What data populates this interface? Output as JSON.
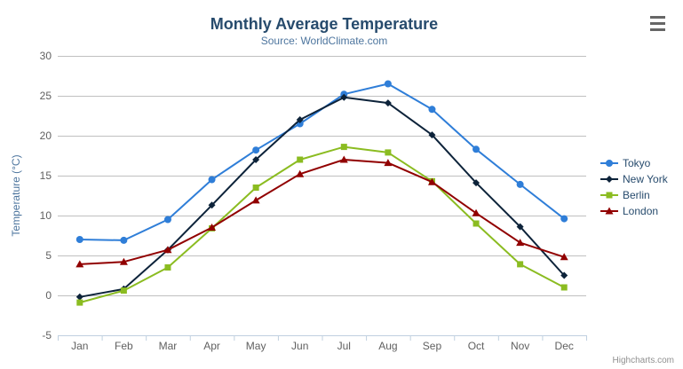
{
  "header": {
    "title": "Monthly Average Temperature",
    "subtitle": "Source: WorldClimate.com"
  },
  "credits": "Highcharts.com",
  "menu_icon": "hamburger-icon",
  "colors": {
    "title": "#274b6d",
    "subtitle": "#4d759e",
    "axis_label": "#606060",
    "axis_title": "#4d759e",
    "grid": "#c0c0c0",
    "axis_line": "#c0d0e0",
    "legend_text": "#274b6d",
    "credits": "#909090",
    "menu": "#666666"
  },
  "chart_data": {
    "type": "line",
    "title": "Monthly Average Temperature",
    "subtitle": "Source: WorldClimate.com",
    "categories": [
      "Jan",
      "Feb",
      "Mar",
      "Apr",
      "May",
      "Jun",
      "Jul",
      "Aug",
      "Sep",
      "Oct",
      "Nov",
      "Dec"
    ],
    "xlabel": "",
    "ylabel": "Temperature (°C)",
    "ylim": [
      -5,
      30
    ],
    "ytick_interval": 5,
    "grid": true,
    "legend_position": "right",
    "series": [
      {
        "name": "Tokyo",
        "color": "#2f7ed8",
        "marker": "circle",
        "values": [
          7.0,
          6.9,
          9.5,
          14.5,
          18.2,
          21.5,
          25.2,
          26.5,
          23.3,
          18.3,
          13.9,
          9.6
        ]
      },
      {
        "name": "New York",
        "color": "#0d233a",
        "marker": "diamond",
        "values": [
          -0.2,
          0.8,
          5.7,
          11.3,
          17.0,
          22.0,
          24.8,
          24.1,
          20.1,
          14.1,
          8.6,
          2.5
        ]
      },
      {
        "name": "Berlin",
        "color": "#8bbc21",
        "marker": "square",
        "values": [
          -0.9,
          0.6,
          3.5,
          8.4,
          13.5,
          17.0,
          18.6,
          17.9,
          14.3,
          9.0,
          3.9,
          1.0
        ]
      },
      {
        "name": "London",
        "color": "#910000",
        "marker": "triangle",
        "values": [
          3.9,
          4.2,
          5.7,
          8.5,
          11.9,
          15.2,
          17.0,
          16.6,
          14.2,
          10.3,
          6.6,
          4.8
        ]
      }
    ]
  }
}
